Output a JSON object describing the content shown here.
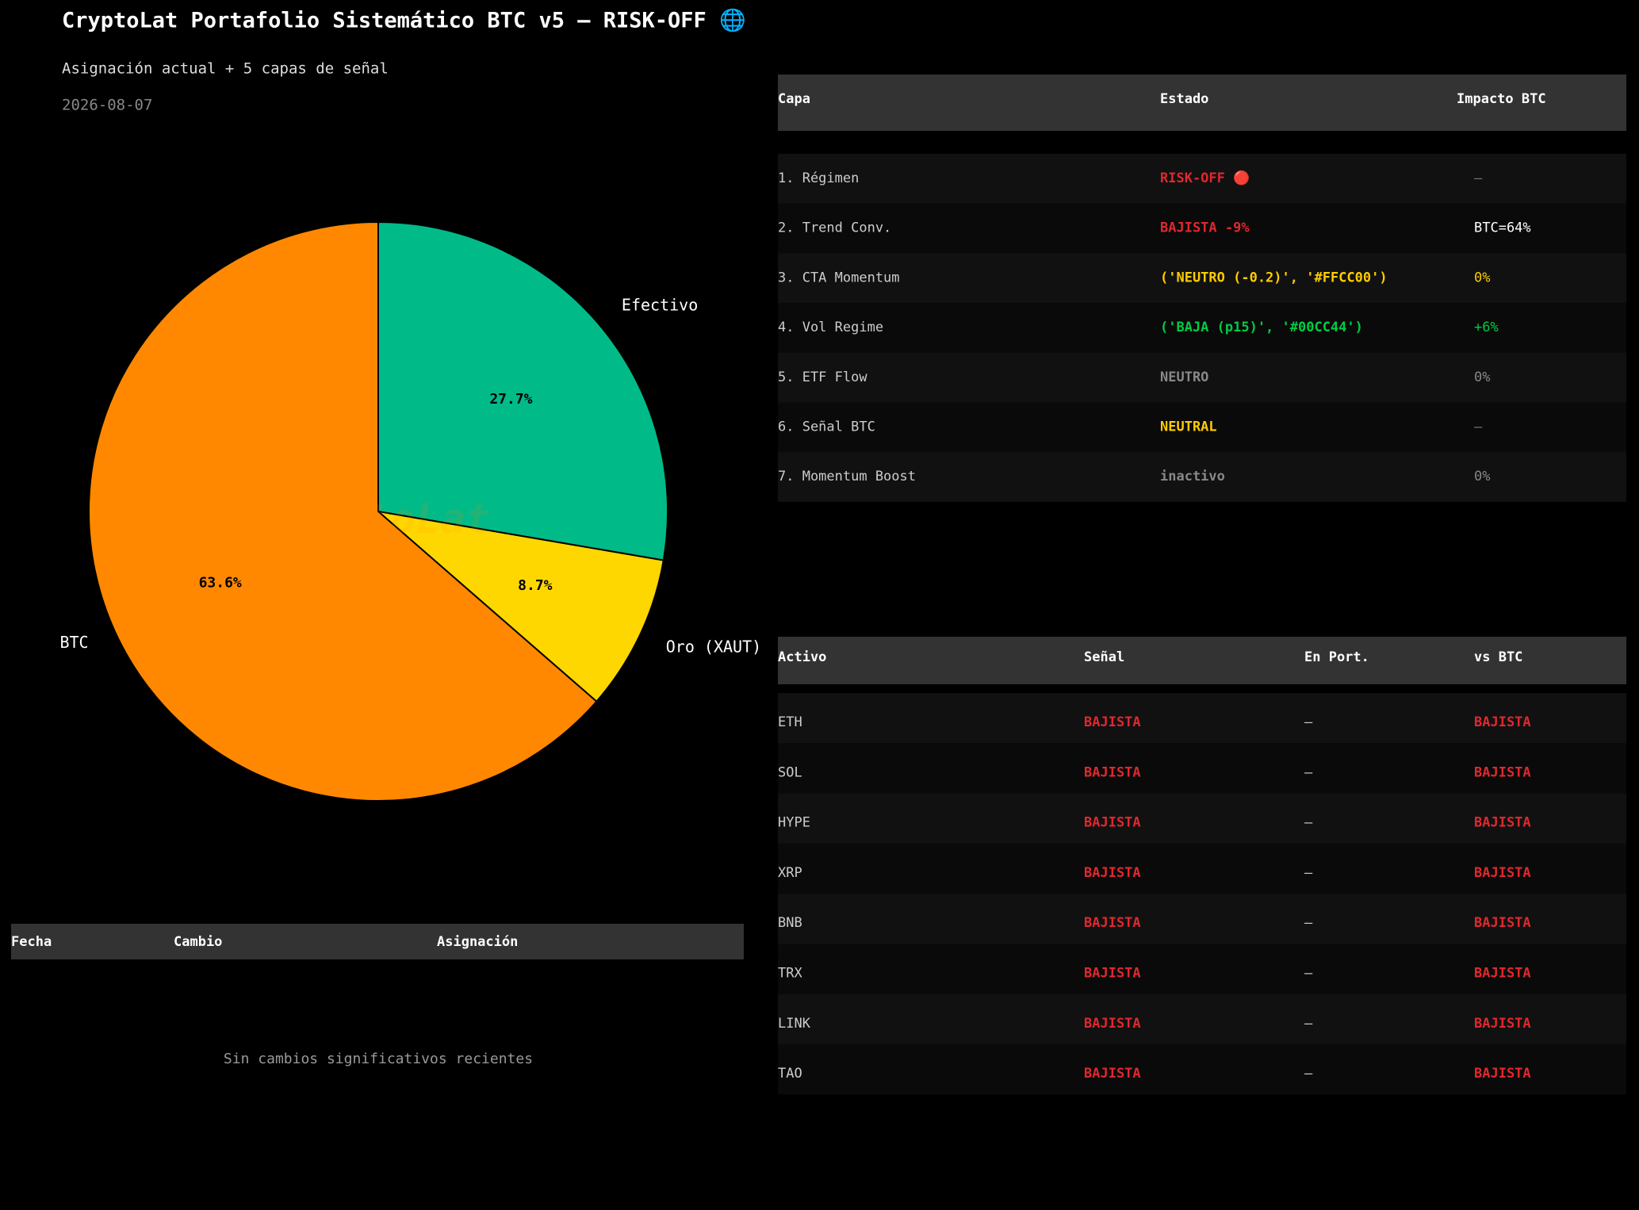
{
  "header": {
    "title": "CryptoLat Portafolio Sistemático BTC v5 — RISK-OFF 🌐",
    "subtitle": "Asignación actual + 5 capas de señal",
    "date": "2026-08-07"
  },
  "chart_data": {
    "type": "pie",
    "watermark": "CryptoLat",
    "categories": [
      "Efectivo",
      "Oro (XAUT)",
      "BTC"
    ],
    "values": [
      27.7,
      8.7,
      63.6
    ],
    "value_labels": [
      "27.7%",
      "8.7%",
      "63.6%"
    ],
    "colors": [
      "#00BB88",
      "#FFD700",
      "#FF8800"
    ]
  },
  "layers_table": {
    "columns": [
      "Capa",
      "Estado",
      "Impacto BTC"
    ],
    "rows": [
      {
        "layer": "1. Régimen",
        "state": "RISK-OFF 🔴",
        "state_color": "#e0282e",
        "impact": "—",
        "impact_color": "#777777"
      },
      {
        "layer": "2. Trend Conv.",
        "state": "BAJISTA -9%",
        "state_color": "#e0282e",
        "impact": "BTC=64%",
        "impact_color": "#ffffff"
      },
      {
        "layer": "3. CTA Momentum",
        "state": "('NEUTRO   (-0.2)', '#FFCC00')",
        "state_color": "#FFCC00",
        "impact": "0%",
        "impact_color": "#FFCC00"
      },
      {
        "layer": "4. Vol Regime",
        "state": "('BAJA  (p15)', '#00CC44')",
        "state_color": "#00CC44",
        "impact": "+6%",
        "impact_color": "#00CC44"
      },
      {
        "layer": "5. ETF Flow",
        "state": "NEUTRO",
        "state_color": "#888888",
        "impact": "0%",
        "impact_color": "#888888"
      },
      {
        "layer": "6. Señal BTC",
        "state": "NEUTRAL",
        "state_color": "#FFCC00",
        "impact": "—",
        "impact_color": "#777777"
      },
      {
        "layer": "7. Momentum Boost",
        "state": "inactivo",
        "state_color": "#888888",
        "impact": "0%",
        "impact_color": "#888888"
      }
    ]
  },
  "assets_table": {
    "columns": [
      "Activo",
      "Señal",
      "En Port.",
      "vs BTC"
    ],
    "signal_color": "#e0282e",
    "rows": [
      [
        "ETH",
        "BAJISTA",
        "—",
        "BAJISTA"
      ],
      [
        "SOL",
        "BAJISTA",
        "—",
        "BAJISTA"
      ],
      [
        "HYPE",
        "BAJISTA",
        "—",
        "BAJISTA"
      ],
      [
        "XRP",
        "BAJISTA",
        "—",
        "BAJISTA"
      ],
      [
        "BNB",
        "BAJISTA",
        "—",
        "BAJISTA"
      ],
      [
        "TRX",
        "BAJISTA",
        "—",
        "BAJISTA"
      ],
      [
        "LINK",
        "BAJISTA",
        "—",
        "BAJISTA"
      ],
      [
        "TAO",
        "BAJISTA",
        "—",
        "BAJISTA"
      ]
    ]
  },
  "changes_table": {
    "columns": [
      "Fecha",
      "Cambio",
      "Asignación"
    ],
    "empty_message": "Sin cambios significativos recientes"
  }
}
